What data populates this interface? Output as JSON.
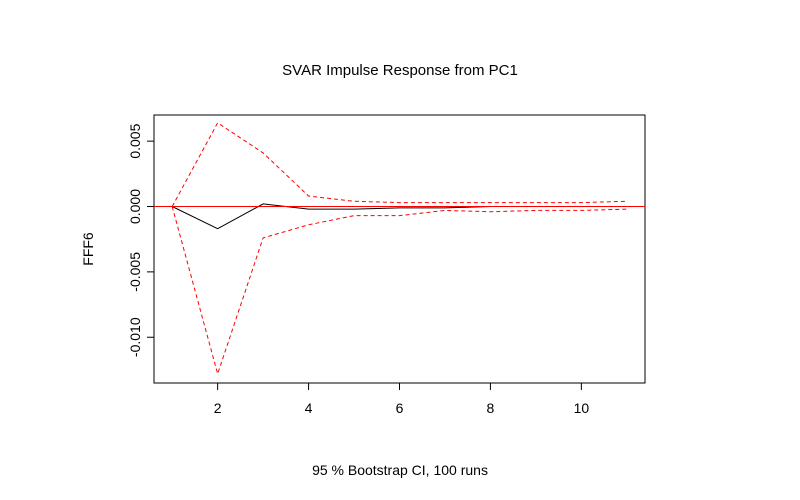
{
  "chart_data": {
    "type": "line",
    "title": "SVAR Impulse Response from PC1",
    "xlabel": "95 % Bootstrap CI,  100 runs",
    "ylabel": "FFF6",
    "x": [
      1,
      2,
      3,
      4,
      5,
      6,
      7,
      8,
      9,
      10,
      11
    ],
    "xlim": [
      0.6,
      11.4
    ],
    "ylim": [
      -0.0135,
      0.007
    ],
    "xticks": [
      2,
      4,
      6,
      8,
      10
    ],
    "yticks": [
      0.005,
      0.0,
      -0.005,
      -0.01
    ],
    "ytick_labels": [
      "0.005",
      "0.000",
      "-0.005",
      "-0.010"
    ],
    "zero_line": {
      "value": 0,
      "color": "#ff0000"
    },
    "series": [
      {
        "role": "irf",
        "color": "#000000",
        "dash": "solid",
        "values": [
          0.0,
          -0.0017,
          0.0002,
          -0.0002,
          -0.0002,
          -0.0001,
          -0.0001,
          0.0,
          0.0,
          0.0,
          0.0
        ]
      },
      {
        "role": "upper-ci",
        "color": "#ff0000",
        "dash": "dashed",
        "values": [
          0.0,
          0.0064,
          0.0041,
          0.0008,
          0.0004,
          0.0003,
          0.0003,
          0.0003,
          0.0003,
          0.0003,
          0.0004
        ]
      },
      {
        "role": "lower-ci",
        "color": "#ff0000",
        "dash": "dashed",
        "values": [
          0.0,
          -0.0128,
          -0.0024,
          -0.0014,
          -0.0007,
          -0.0007,
          -0.0003,
          -0.0004,
          -0.0003,
          -0.0003,
          -0.0002
        ]
      }
    ]
  }
}
